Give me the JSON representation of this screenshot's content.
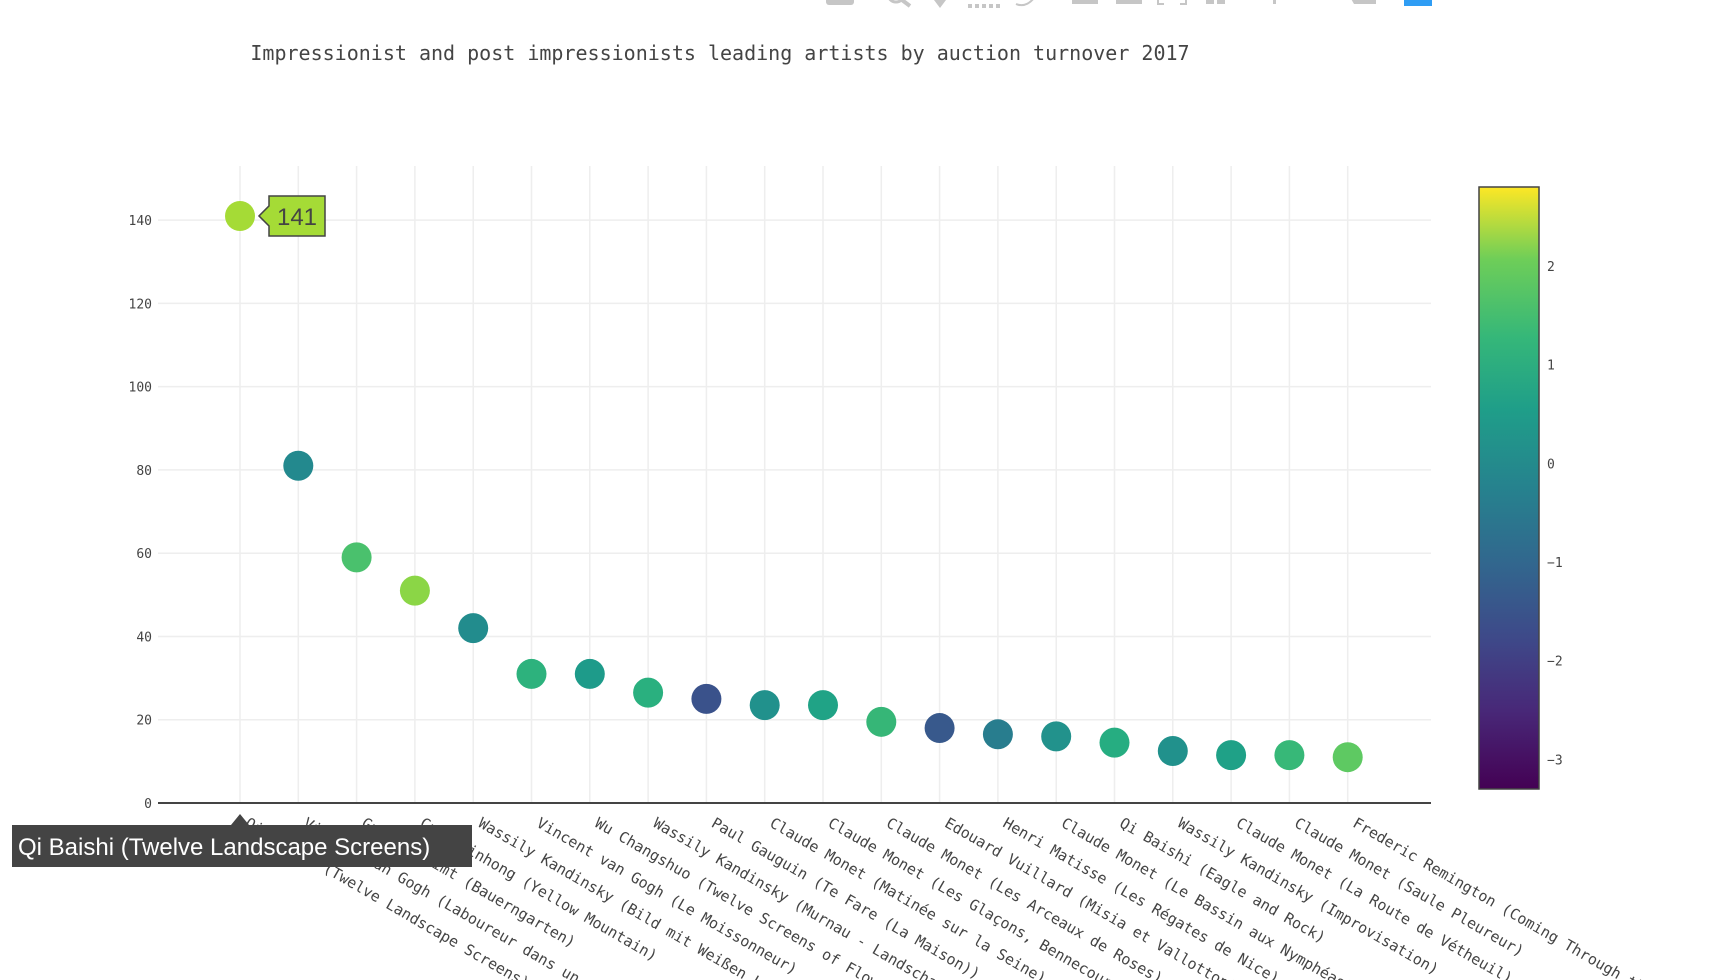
{
  "toolbar": {
    "icons": [
      "camera-icon",
      "zoom-icon",
      "pan-icon",
      "box-select-icon",
      "lasso-select-icon",
      "zoom-in-icon",
      "zoom-out-icon",
      "autoscale-icon",
      "reset-axes-icon",
      "spike-lines-icon",
      "hover-closest-icon",
      "hover-compare-icon",
      "plotly-logo-icon"
    ],
    "accent_color": "#2f9df4",
    "icon_color": "#c6c6c6"
  },
  "chart_data": {
    "type": "scatter",
    "title": "Impressionist and post impressionists leading artists by auction turnover 2017",
    "xlabel": "",
    "ylabel": "",
    "ylim": [
      0,
      153
    ],
    "yticks": [
      0,
      20,
      40,
      60,
      80,
      100,
      120,
      140
    ],
    "grid": true,
    "colorscale": "Viridis",
    "colorbar": {
      "range": [
        -3.3,
        2.8
      ],
      "ticks": [
        2,
        1,
        0,
        -1,
        -2,
        -3
      ],
      "tick_labels": [
        "2",
        "1",
        "0",
        "−1",
        "−2",
        "−3"
      ]
    },
    "categories": [
      "Qi Baishi (Twelve Landscape Screens)",
      "Vincent van Gogh (Laboureur dans un champ)",
      "Gustav Klimt (Bauerngarten)",
      "Cui Zhinhong (Yellow Mountain)",
      "Wassily Kandinsky (Bild mit Weißen Linien)",
      "Vincent van Gogh (Le Moissonneur)",
      "Wu Changshuo (Twelve Screens of Flowers)",
      "Wassily Kandinsky (Murnau - Landschaft)",
      "Paul Gauguin (Te Fare (La Maison))",
      "Claude Monet (Matinée sur la Seine)",
      "Claude Monet (Les Glaçons, Bennecourt)",
      "Claude Monet (Les Arceaux de Roses)",
      "Edouard Vuillard (Misia et Vallotton)",
      "Henri Matisse (Les Régates de Nice)",
      "Claude Monet (Le Bassin aux Nymphéas)",
      "Qi Baishi (Eagle and Rock)",
      "Wassily Kandinsky (Improvisation)",
      "Claude Monet (La Route de Vétheuil)",
      "Claude Monet (Saule Pleureur)",
      "Frederic Remington (Coming Through the Rye)"
    ],
    "values": [
      141,
      81,
      59,
      51,
      42,
      31,
      31,
      26.5,
      25,
      23.5,
      23.5,
      19.5,
      18,
      16.5,
      16,
      14.5,
      12.5,
      11.5,
      11.5,
      11
    ],
    "colors": [
      "#a5db36",
      "#23898e",
      "#4ac16d",
      "#8bd646",
      "#228c8d",
      "#2db27d",
      "#1e9b8a",
      "#2ab07f",
      "#3a528b",
      "#21918c",
      "#20a386",
      "#36b677",
      "#38598c",
      "#287d8e",
      "#22928c",
      "#26ad81",
      "#21918c",
      "#1fa187",
      "#37b878",
      "#5ec962"
    ],
    "hover": {
      "point_index": 0,
      "category_label": "Qi Baishi (Twelve Landscape Screens)",
      "value_label": "141",
      "value_bg": "#a5db36",
      "label_bg": "#444444"
    }
  }
}
